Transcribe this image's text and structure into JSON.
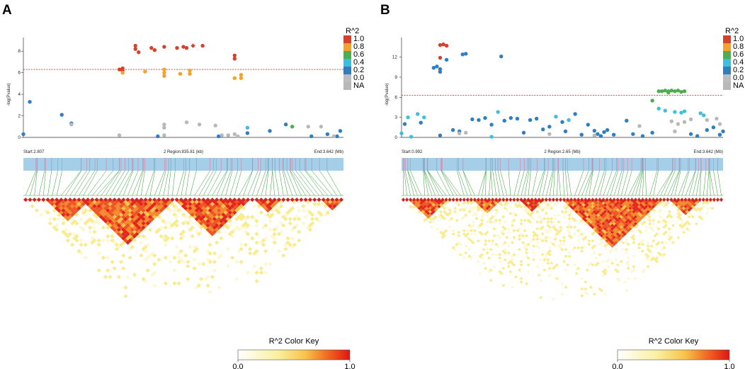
{
  "chart_data": [
    {
      "panel": "A",
      "type": "scatter",
      "ylabel": "-log(Pvalue)",
      "ylim": [
        0,
        9
      ],
      "yticks": [
        0,
        2,
        4,
        6,
        8
      ],
      "threshold": 6.3,
      "region": {
        "start": "Start:2.807",
        "middle": "2 Region:835.81 (kb)",
        "end": "End:3.642 (Mb)"
      },
      "legend_title": "R^2",
      "legend_labels": [
        "1.0",
        "0.8",
        "0.6",
        "0.4",
        "0.2",
        "0.0",
        "NA"
      ],
      "key_title": "R^2 Color Key",
      "key_min": "0.0",
      "key_max": "1.0",
      "colors": {
        "r10": "#d7402b",
        "r08": "#f5a12a",
        "r06": "#4cae4c",
        "r04": "#3fbfdf",
        "r02": "#2f7ec1",
        "r00": "#bdbdbd",
        "na": "#b8b8b8"
      },
      "series": [
        {
          "name": "1.0",
          "color": "#d7402b",
          "points": [
            [
              0.35,
              8.5
            ],
            [
              0.35,
              8.2
            ],
            [
              0.36,
              7.9
            ],
            [
              0.4,
              8.3
            ],
            [
              0.41,
              8.1
            ],
            [
              0.44,
              8.4
            ],
            [
              0.48,
              8.3
            ],
            [
              0.5,
              8.4
            ],
            [
              0.51,
              8.3
            ],
            [
              0.53,
              8.5
            ],
            [
              0.56,
              8.5
            ],
            [
              0.31,
              6.4
            ],
            [
              0.31,
              6.2
            ],
            [
              0.3,
              6.3
            ],
            [
              0.66,
              7.6
            ],
            [
              0.66,
              7.3
            ]
          ]
        },
        {
          "name": "0.8",
          "color": "#f5a12a",
          "points": [
            [
              0.31,
              6.0
            ],
            [
              0.38,
              6.1
            ],
            [
              0.44,
              6.3
            ],
            [
              0.44,
              6.0
            ],
            [
              0.44,
              5.7
            ],
            [
              0.49,
              5.9
            ],
            [
              0.52,
              5.9
            ],
            [
              0.52,
              6.2
            ],
            [
              0.66,
              5.5
            ],
            [
              0.68,
              5.5
            ],
            [
              0.68,
              5.8
            ]
          ]
        },
        {
          "name": "0.6",
          "color": "#4cae4c",
          "points": [
            [
              0.84,
              1.0
            ]
          ]
        },
        {
          "name": "0.4",
          "color": "#3fbfdf",
          "points": [
            [
              0.7,
              0.9
            ]
          ]
        },
        {
          "name": "0.2",
          "color": "#2f7ec1",
          "points": [
            [
              0.0,
              0.3
            ],
            [
              0.02,
              3.3
            ],
            [
              0.12,
              2.1
            ],
            [
              0.15,
              1.3
            ],
            [
              0.42,
              0.1
            ],
            [
              0.61,
              0.1
            ],
            [
              0.7,
              0.4
            ],
            [
              0.77,
              0.6
            ],
            [
              0.82,
              1.2
            ],
            [
              0.9,
              0.1
            ],
            [
              0.95,
              0.3
            ],
            [
              0.98,
              0.1
            ],
            [
              0.99,
              0.6
            ]
          ]
        },
        {
          "name": "NA",
          "color": "#b8b8b8",
          "points": [
            [
              0.15,
              1.2
            ],
            [
              0.3,
              0.2
            ],
            [
              0.44,
              1.2
            ],
            [
              0.44,
              0.9
            ],
            [
              0.44,
              0.2
            ],
            [
              0.51,
              1.4
            ],
            [
              0.55,
              1.2
            ],
            [
              0.6,
              1.1
            ],
            [
              0.62,
              0.2
            ],
            [
              0.64,
              0.2
            ],
            [
              0.66,
              0.3
            ],
            [
              0.67,
              0.1
            ],
            [
              0.89,
              1.0
            ],
            [
              0.93,
              1.0
            ],
            [
              0.97,
              0.1
            ]
          ]
        }
      ]
    },
    {
      "panel": "B",
      "type": "scatter",
      "ylabel": "-log(Pvalue)",
      "ylim": [
        0,
        14.5
      ],
      "yticks": [
        0,
        3,
        6,
        9,
        12
      ],
      "threshold": 6.3,
      "region": {
        "start": "Start:0.992",
        "middle": "2 Region:2.65 (Mb)",
        "end": "End:3.642 (Mb)"
      },
      "legend_title": "R^2",
      "legend_labels": [
        "1.0",
        "0.8",
        "0.6",
        "0.4",
        "0.2",
        "0.0",
        "NA"
      ],
      "key_title": "R^2 Color Key",
      "key_min": "0.0",
      "key_max": "1.0",
      "colors": {
        "r10": "#d7402b",
        "r08": "#f5a12a",
        "r06": "#4cae4c",
        "r04": "#3fbfdf",
        "r02": "#2f7ec1",
        "r00": "#bdbdbd",
        "na": "#b8b8b8"
      },
      "series": [
        {
          "name": "1.0",
          "color": "#d7402b",
          "points": [
            [
              0.12,
              13.8
            ],
            [
              0.13,
              13.9
            ],
            [
              0.14,
              13.7
            ],
            [
              0.12,
              11.9
            ]
          ]
        },
        {
          "name": "0.6",
          "color": "#4cae4c",
          "points": [
            [
              0.78,
              5.5
            ],
            [
              0.8,
              6.9
            ],
            [
              0.81,
              6.9
            ],
            [
              0.82,
              7.0
            ],
            [
              0.83,
              6.9
            ],
            [
              0.84,
              7.0
            ],
            [
              0.85,
              6.9
            ],
            [
              0.86,
              7.0
            ],
            [
              0.87,
              6.8
            ],
            [
              0.88,
              6.9
            ],
            [
              0.83,
              6.7
            ]
          ]
        },
        {
          "name": "0.4",
          "color": "#3fbfdf",
          "points": [
            [
              0.0,
              0.6
            ],
            [
              0.02,
              3.0
            ],
            [
              0.03,
              0.1
            ],
            [
              0.05,
              3.5
            ],
            [
              0.07,
              3.0
            ],
            [
              0.28,
              0.1
            ],
            [
              0.3,
              3.8
            ],
            [
              0.48,
              3.1
            ],
            [
              0.52,
              2.6
            ],
            [
              0.8,
              4.3
            ],
            [
              0.82,
              4.0
            ],
            [
              0.85,
              3.8
            ],
            [
              0.87,
              3.7
            ],
            [
              0.88,
              3.9
            ],
            [
              0.93,
              3.6
            ],
            [
              0.94,
              3.3
            ]
          ]
        },
        {
          "name": "0.2",
          "color": "#2f7ec1",
          "points": [
            [
              0.1,
              10.4
            ],
            [
              0.11,
              10.6
            ],
            [
              0.12,
              10.2
            ],
            [
              0.12,
              9.8
            ],
            [
              0.14,
              11.6
            ],
            [
              0.19,
              12.4
            ],
            [
              0.2,
              12.5
            ],
            [
              0.31,
              12.1
            ],
            [
              0.01,
              2.0
            ],
            [
              0.06,
              2.2
            ],
            [
              0.12,
              0.3
            ],
            [
              0.16,
              1.1
            ],
            [
              0.18,
              0.9
            ],
            [
              0.22,
              2.7
            ],
            [
              0.24,
              2.6
            ],
            [
              0.26,
              2.9
            ],
            [
              0.28,
              1.9
            ],
            [
              0.32,
              2.5
            ],
            [
              0.34,
              2.9
            ],
            [
              0.36,
              2.8
            ],
            [
              0.38,
              0.7
            ],
            [
              0.4,
              2.6
            ],
            [
              0.42,
              2.8
            ],
            [
              0.44,
              1.2
            ],
            [
              0.46,
              1.6
            ],
            [
              0.5,
              2.3
            ],
            [
              0.51,
              0.9
            ],
            [
              0.54,
              3.5
            ],
            [
              0.56,
              0.4
            ],
            [
              0.58,
              1.9
            ],
            [
              0.6,
              1.0
            ],
            [
              0.61,
              0.5
            ],
            [
              0.62,
              0.2
            ],
            [
              0.63,
              0.8
            ],
            [
              0.64,
              1.1
            ],
            [
              0.66,
              0.4
            ],
            [
              0.7,
              2.5
            ],
            [
              0.72,
              0.5
            ],
            [
              0.75,
              0.2
            ],
            [
              0.78,
              0.7
            ],
            [
              0.9,
              0.5
            ],
            [
              0.92,
              0.2
            ],
            [
              0.95,
              1.1
            ],
            [
              0.97,
              1.5
            ],
            [
              0.99,
              0.4
            ],
            [
              1.0,
              0.9
            ]
          ]
        },
        {
          "name": "NA",
          "color": "#b8b8b8",
          "points": [
            [
              0.18,
              0.6
            ],
            [
              0.2,
              0.7
            ],
            [
              0.46,
              0.5
            ],
            [
              0.6,
              0.3
            ],
            [
              0.74,
              1.7
            ],
            [
              0.84,
              2.4
            ],
            [
              0.85,
              0.9
            ],
            [
              0.86,
              2.0
            ],
            [
              0.88,
              2.3
            ],
            [
              0.9,
              2.7
            ],
            [
              0.95,
              2.6
            ],
            [
              0.98,
              2.8
            ],
            [
              0.99,
              2.0
            ]
          ]
        }
      ]
    }
  ]
}
